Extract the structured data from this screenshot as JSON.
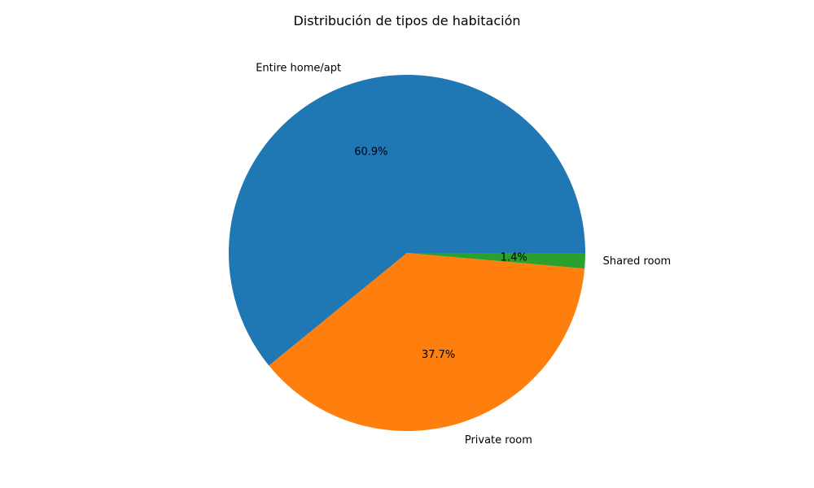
{
  "chart_data": {
    "type": "pie",
    "title": "Distribución de tipos de habitación",
    "slices": [
      {
        "label": "Entire home/apt",
        "value": 60.9,
        "pct_label": "60.9%",
        "color": "#1f77b4"
      },
      {
        "label": "Private room",
        "value": 37.7,
        "pct_label": "37.7%",
        "color": "#ff7f0e"
      },
      {
        "label": "Shared room",
        "value": 1.4,
        "pct_label": "1.4%",
        "color": "#2ca02c"
      }
    ],
    "start_angle_deg": 0,
    "direction": "counterclockwise",
    "legend": "none"
  }
}
